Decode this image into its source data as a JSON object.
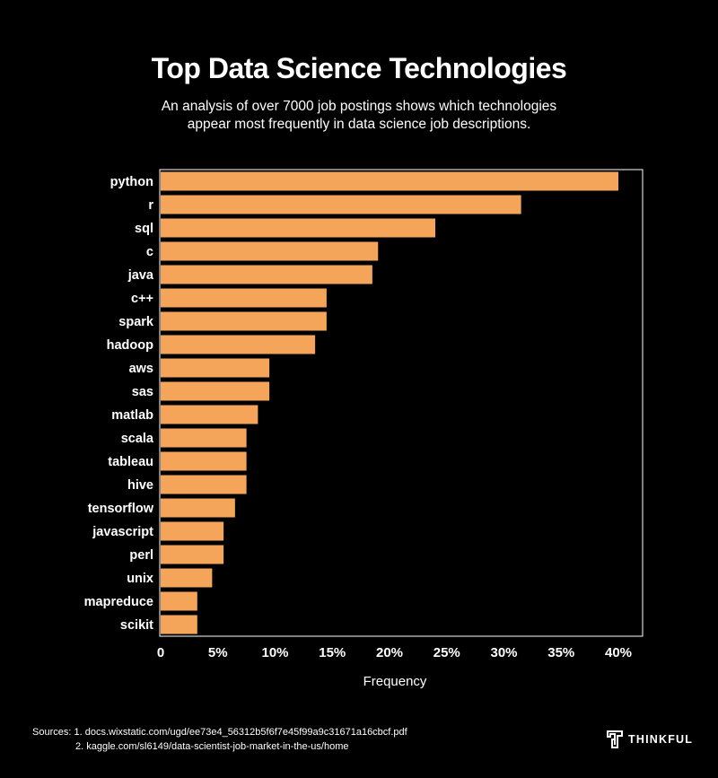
{
  "chart_data": {
    "type": "bar",
    "orientation": "horizontal",
    "title": "Top Data Science Technologies",
    "subtitle": [
      "An analysis of over 7000 job postings shows which technologies",
      "appear most frequently in data science job descriptions."
    ],
    "xlabel": "Frequency",
    "ylabel": "",
    "categories": [
      "python",
      "r",
      "sql",
      "c",
      "java",
      "c++",
      "spark",
      "hadoop",
      "aws",
      "sas",
      "matlab",
      "scala",
      "tableau",
      "hive",
      "tensorflow",
      "javascript",
      "perl",
      "unix",
      "mapreduce",
      "scikit"
    ],
    "values": [
      40.0,
      31.5,
      24.0,
      19.0,
      18.5,
      14.5,
      14.5,
      13.5,
      9.5,
      9.5,
      8.5,
      7.5,
      7.5,
      7.5,
      6.5,
      5.5,
      5.5,
      4.5,
      3.2,
      3.2
    ],
    "xlim": [
      0,
      41
    ],
    "xticks": [
      0,
      5,
      10,
      15,
      20,
      25,
      30,
      35,
      40
    ],
    "xtick_labels": [
      "0",
      "5%",
      "10%",
      "15%",
      "20%",
      "25%",
      "30%",
      "35%",
      "40%"
    ],
    "bar_color": "#F5A55A",
    "grid": false,
    "legend": "none"
  },
  "sources": {
    "label": "Sources:",
    "items": [
      "1. docs.wixstatic.com/ugd/ee73e4_56312b5f6f7e45f99a9c31671a16cbcf.pdf",
      "2. kaggle.com/sl6149/data-scientist-job-market-in-the-us/home"
    ]
  },
  "brand": {
    "name": "THINKFUL",
    "icon": "thinkful-logo-icon"
  },
  "colors": {
    "background": "#000000",
    "text": "#FFFFFF",
    "accent": "#F5A55A"
  }
}
